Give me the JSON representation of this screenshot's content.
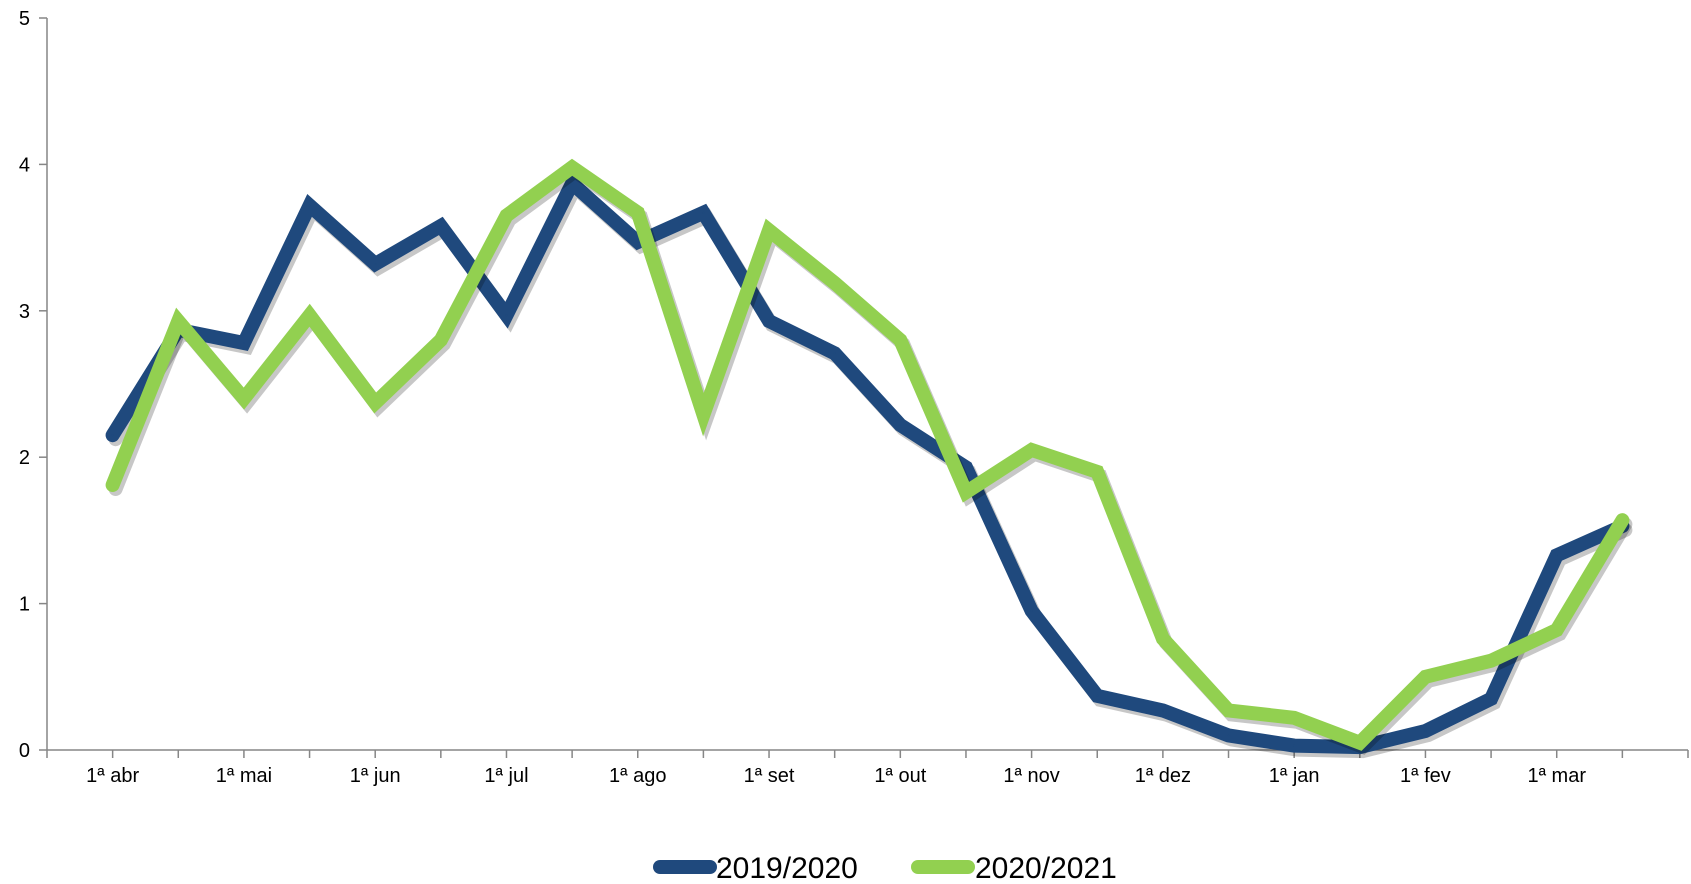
{
  "chart_data": {
    "type": "line",
    "title": "",
    "xlabel": "",
    "ylabel": "",
    "ylim": [
      0,
      5
    ],
    "yticks": [
      "0",
      "1",
      "2",
      "3",
      "4",
      "5"
    ],
    "x_tick_labels": [
      "1ª abr",
      "1ª mai",
      "1ª jun",
      "1ª jul",
      "1ª ago",
      "1ª set",
      "1ª out",
      "1ª nov",
      "1ª dez",
      "1ª jan",
      "1ª fev",
      "1ª mar"
    ],
    "x_tick_label_index": [
      0,
      2,
      4,
      6,
      8,
      10,
      12,
      14,
      16,
      18,
      20,
      22
    ],
    "grid": false,
    "legend_position": "bottom",
    "series": [
      {
        "name": "2019/2020",
        "color": "#1f497d",
        "values": [
          2.15,
          2.87,
          2.78,
          3.72,
          3.32,
          3.58,
          2.97,
          3.87,
          3.47,
          3.67,
          2.93,
          2.71,
          2.22,
          1.93,
          0.95,
          0.37,
          0.27,
          0.1,
          0.03,
          0.02,
          0.13,
          0.35,
          1.33,
          1.53
        ]
      },
      {
        "name": "2020/2021",
        "color": "#92d050",
        "values": [
          1.81,
          2.93,
          2.4,
          2.97,
          2.37,
          2.8,
          3.65,
          3.98,
          3.67,
          2.29,
          3.55,
          3.19,
          2.8,
          1.76,
          2.05,
          1.9,
          0.76,
          0.27,
          0.22,
          0.05,
          0.5,
          0.61,
          0.82,
          1.57
        ]
      }
    ]
  }
}
